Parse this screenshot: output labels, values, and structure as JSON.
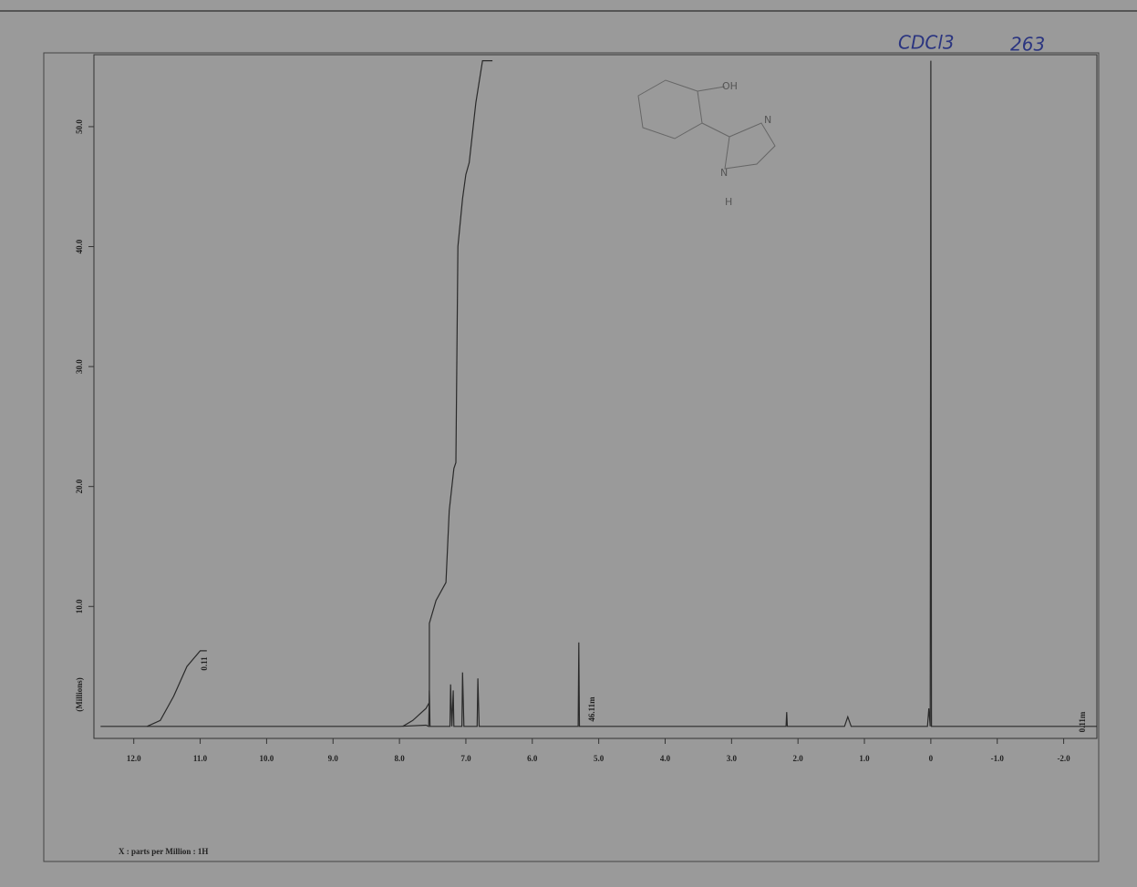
{
  "chart_data": {
    "type": "line",
    "xlabel": "X : parts per Million : 1H",
    "ylabel": "(Millions)",
    "xlim": [
      12.6,
      -2.5
    ],
    "ylim": [
      -1,
      56
    ],
    "xticks": [
      {
        "value": 12,
        "label": "12.0"
      },
      {
        "value": 11,
        "label": "11.0"
      },
      {
        "value": 10,
        "label": "10.0"
      },
      {
        "value": 9,
        "label": "9.0"
      },
      {
        "value": 8,
        "label": "8.0"
      },
      {
        "value": 7,
        "label": "7.0"
      },
      {
        "value": 6,
        "label": "6.0"
      },
      {
        "value": 5,
        "label": "5.0"
      },
      {
        "value": 4,
        "label": "4.0"
      },
      {
        "value": 3,
        "label": "3.0"
      },
      {
        "value": 2,
        "label": "2.0"
      },
      {
        "value": 1,
        "label": "1.0"
      },
      0,
      {
        "value": -1,
        "label": "-1.0"
      },
      {
        "value": -2,
        "label": "-2.0"
      }
    ],
    "yticks": [
      {
        "value": 10,
        "label": "10.0"
      },
      {
        "value": 20,
        "label": "20.0"
      },
      {
        "value": 30,
        "label": "30.0"
      },
      {
        "value": 40,
        "label": "40.0"
      },
      {
        "value": 50,
        "label": "50.0"
      }
    ],
    "series": [
      {
        "color": "#2a2a2a",
        "x": [
          12.5,
          8.0,
          7.6,
          7.56,
          7.55,
          7.54,
          7.24,
          7.23,
          7.21,
          7.19,
          7.18,
          7.06,
          7.05,
          7.03,
          6.83,
          6.82,
          6.8,
          5.31,
          5.3,
          5.29,
          2.18,
          2.17,
          2.16,
          1.3,
          1.25,
          1.2,
          0.05,
          0.03,
          0.01,
          0.0,
          -0.01,
          -2.5
        ],
        "values": [
          0,
          0,
          0.1,
          0,
          3,
          0,
          0,
          3.5,
          0,
          3,
          0,
          0,
          4.5,
          0,
          0,
          4,
          0,
          0,
          7,
          0,
          0,
          1.2,
          0,
          0,
          0.8,
          0,
          0,
          1.5,
          0,
          55.5,
          0,
          0
        ]
      },
      {
        "color": "#2a2a2a",
        "x": [
          11.8,
          11.6,
          11.4,
          11.2,
          11.0,
          10.9
        ],
        "values": [
          0,
          0.5,
          2.5,
          5,
          6.3,
          6.3
        ]
      },
      {
        "color": "#2a2a2a",
        "x": [
          7.95,
          7.8,
          7.6,
          7.55,
          7.55,
          7.45,
          7.3,
          7.25,
          7.18,
          7.15,
          7.12,
          7.05,
          7.0,
          6.95,
          6.85,
          6.75,
          6.6
        ],
        "values": [
          0,
          0.5,
          1.5,
          2,
          8.6,
          10.5,
          12,
          18,
          21.5,
          22,
          40,
          44,
          46,
          47,
          52,
          55.5,
          55.5
        ]
      }
    ],
    "annotations": [
      "0.11",
      "46.11m",
      "0.11m"
    ],
    "handwritten": [
      "CDCl3",
      "263",
      "OH",
      "N",
      "N",
      "H"
    ]
  }
}
